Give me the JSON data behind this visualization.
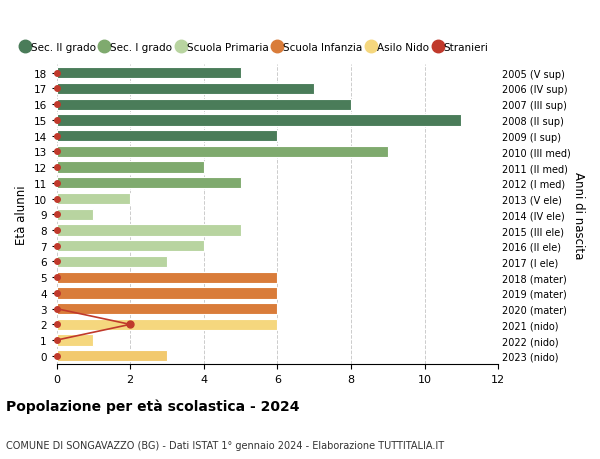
{
  "ages": [
    18,
    17,
    16,
    15,
    14,
    13,
    12,
    11,
    10,
    9,
    8,
    7,
    6,
    5,
    4,
    3,
    2,
    1,
    0
  ],
  "right_labels": [
    "2005 (V sup)",
    "2006 (IV sup)",
    "2007 (III sup)",
    "2008 (II sup)",
    "2009 (I sup)",
    "2010 (III med)",
    "2011 (II med)",
    "2012 (I med)",
    "2013 (V ele)",
    "2014 (IV ele)",
    "2015 (III ele)",
    "2016 (II ele)",
    "2017 (I ele)",
    "2018 (mater)",
    "2019 (mater)",
    "2020 (mater)",
    "2021 (nido)",
    "2022 (nido)",
    "2023 (nido)"
  ],
  "bar_values": [
    5,
    7,
    8,
    11,
    6,
    9,
    4,
    5,
    2,
    1,
    5,
    4,
    3,
    6,
    6,
    6,
    6,
    1,
    3
  ],
  "bar_colors": [
    "#4a7c59",
    "#4a7c59",
    "#4a7c59",
    "#4a7c59",
    "#4a7c59",
    "#7faa6e",
    "#7faa6e",
    "#7faa6e",
    "#b8d4a0",
    "#b8d4a0",
    "#b8d4a0",
    "#b8d4a0",
    "#b8d4a0",
    "#d97c3a",
    "#d97c3a",
    "#d97c3a",
    "#f5d77e",
    "#f5d77e",
    "#f2c96e"
  ],
  "stranieri_color": "#c0392b",
  "stranieri_line_x": [
    0,
    2,
    0
  ],
  "stranieri_line_y": [
    3,
    2,
    1
  ],
  "stranieri_dot_x": 2,
  "stranieri_dot_y": 2,
  "legend_labels": [
    "Sec. II grado",
    "Sec. I grado",
    "Scuola Primaria",
    "Scuola Infanzia",
    "Asilo Nido",
    "Stranieri"
  ],
  "legend_colors": [
    "#4a7c59",
    "#7faa6e",
    "#b8d4a0",
    "#d97c3a",
    "#f5d77e",
    "#c0392b"
  ],
  "title": "Popolazione per età scolastica - 2024",
  "subtitle": "COMUNE DI SONGAVAZZO (BG) - Dati ISTAT 1° gennaio 2024 - Elaborazione TUTTITALIA.IT",
  "ylabel_label": "Età alunni",
  "right_ylabel": "Anni di nascita",
  "xlim": [
    0,
    12
  ],
  "ylim": [
    -0.55,
    18.55
  ],
  "xticks": [
    0,
    2,
    4,
    6,
    8,
    10,
    12
  ],
  "bg_color": "#ffffff",
  "grid_color": "#cccccc",
  "bar_height": 0.72
}
